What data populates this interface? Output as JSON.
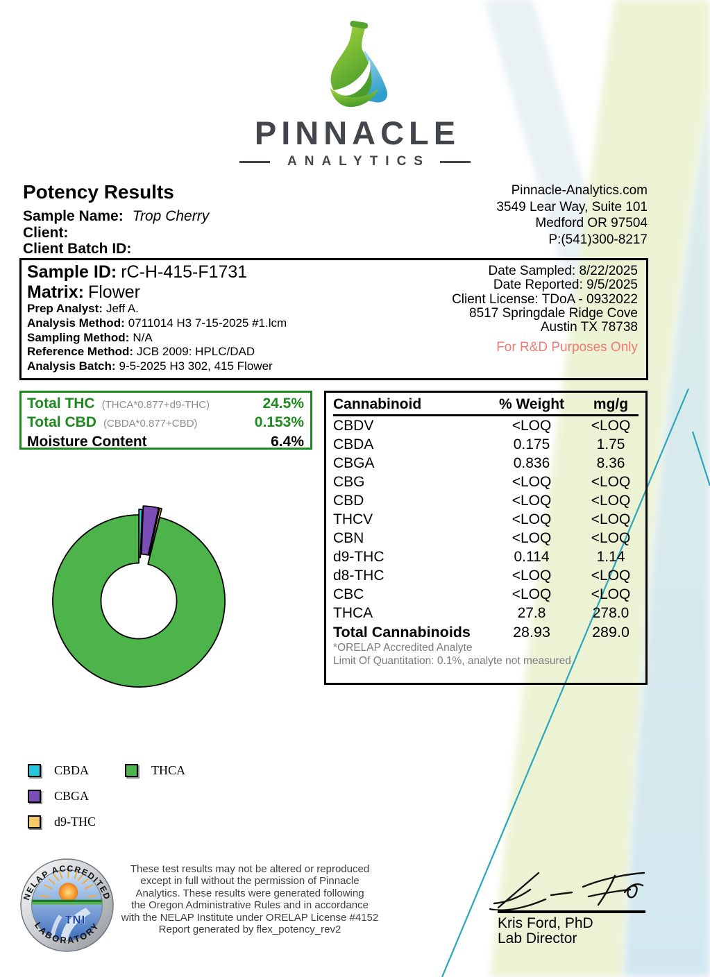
{
  "logo": {
    "brand": "PINNACLE",
    "sub": "ANALYTICS"
  },
  "header": {
    "title": "Potency Results",
    "sample_name_label": "Sample Name:",
    "sample_name": "Trop Cherry",
    "client_label": "Client:",
    "client_batch_label": "Client Batch ID:",
    "contact": {
      "website": "Pinnacle-Analytics.com",
      "address1": "3549 Lear Way, Suite 101",
      "address2": "Medford OR 97504",
      "phone": "P:(541)300-8217"
    }
  },
  "sample_box": {
    "sample_id_label": "Sample ID:",
    "sample_id": "rC-H-415-F1731",
    "matrix_label": "Matrix:",
    "matrix": "Flower",
    "details": [
      {
        "label": "Prep Analyst:",
        "value": "Jeff A."
      },
      {
        "label": "Analysis Method:",
        "value": "0711014 H3 7-15-2025 #1.lcm"
      },
      {
        "label": "Sampling Method:",
        "value": "N/A"
      },
      {
        "label": "Reference Method:",
        "value": "JCB 2009: HPLC/DAD"
      },
      {
        "label": "Analysis Batch:",
        "value": "9-5-2025 H3 302, 415 Flower"
      }
    ],
    "meta": [
      "Date Sampled:  8/22/2025",
      "Date Reported: 9/5/2025",
      "Client License: TDoA - 0932022",
      "8517 Springdale Ridge Cove",
      "Austin TX 78738"
    ],
    "rd_notice": "For R&D Purposes Only",
    "rd_color": "#ee7a72"
  },
  "totals_box": {
    "accent_color": "#1d8a1d",
    "rows": [
      {
        "label": "Total THC",
        "formula": "(THCA*0.877+d9-THC)",
        "value": "24.5%",
        "green": true
      },
      {
        "label": "Total CBD",
        "formula": "(CBDA*0.877+CBD)",
        "value": "0.153%",
        "green": true
      },
      {
        "label": "Moisture Content",
        "formula": "",
        "value": "6.4%",
        "green": false
      }
    ]
  },
  "table": {
    "headers": [
      "Cannabinoid",
      "% Weight",
      "mg/g"
    ],
    "rows": [
      [
        "CBDV",
        "<LOQ",
        "<LOQ"
      ],
      [
        "CBDA",
        "0.175",
        "1.75"
      ],
      [
        "CBGA",
        "0.836",
        "8.36"
      ],
      [
        "CBG",
        "<LOQ",
        "<LOQ"
      ],
      [
        "CBD",
        "<LOQ",
        "<LOQ"
      ],
      [
        "THCV",
        "<LOQ",
        "<LOQ"
      ],
      [
        "CBN",
        "<LOQ",
        "<LOQ"
      ],
      [
        "d9-THC",
        "0.114",
        "1.14"
      ],
      [
        "d8-THC",
        "<LOQ",
        "<LOQ"
      ],
      [
        "CBC",
        "<LOQ",
        "<LOQ"
      ],
      [
        "THCA",
        "27.8",
        "278.0"
      ]
    ],
    "total_row": {
      "label": "Total Cannabinoids",
      "weight": "28.93",
      "mgg": "289.0"
    },
    "footnotes": [
      "*ORELAP Accredited Analyte",
      "Limit Of Quantitation: 0.1%, analyte not measured"
    ]
  },
  "chart_data": {
    "type": "pie",
    "subtype": "donut",
    "title": "",
    "units": "% weight of total cannabinoids",
    "slices": [
      {
        "label": "CBDA",
        "value": 0.175,
        "color": "#29c5dd",
        "explode": 8
      },
      {
        "label": "CBGA",
        "value": 0.836,
        "color": "#7b4db6",
        "explode": 13
      },
      {
        "label": "d9-THC",
        "value": 0.114,
        "color": "#f6c968",
        "explode": 13
      },
      {
        "label": "THCA",
        "value": 27.8,
        "color": "#4cb44a",
        "explode": 0
      }
    ],
    "start_angle_deg": -90,
    "direction": "clockwise",
    "donut_inner_ratio": 0.44,
    "legend_position": "below-left"
  },
  "seal": {
    "top_text": "NELAP ACCREDITED",
    "bottom_text": "LABORATORY",
    "center_text": "TNI"
  },
  "footer": {
    "disclaimer_lines": [
      "These test results may not be altered or reproduced",
      "except in full without the permission of Pinnacle",
      "Analytics. These results were generated following",
      "the Oregon Administrative Rules and in accordance",
      "with the NELAP Institute under ORELAP License #4152",
      "Report generated by flex_potency_rev2"
    ],
    "signer_name": "Kris Ford, PhD",
    "signer_title": "Lab Director"
  },
  "decor": {
    "band_green": "#ecf3d3",
    "band_blue_top": "#dcebe8",
    "band_blue_bottom": "#d2e6f0",
    "band_slate": "#e4eef3",
    "teal_line": "#2aa6bc"
  }
}
